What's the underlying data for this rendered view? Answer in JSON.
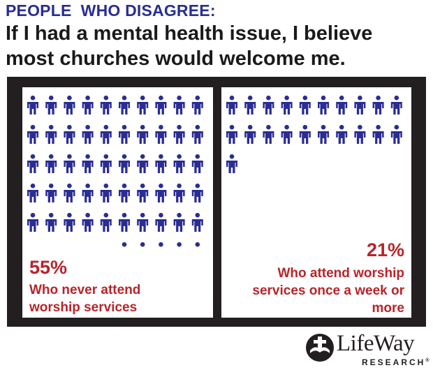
{
  "header": {
    "label": "PEOPLE  WHO DISAGREE:",
    "headline": "If I had a mental health issue, I believe most churches would welcome me."
  },
  "chart_data": {
    "type": "pictograph",
    "unit": "person icon = 1%",
    "icon_color": "#2a2d93",
    "panels": [
      {
        "percent_label": "55%",
        "value": 55,
        "description": "Who never attend worship services"
      },
      {
        "percent_label": "21%",
        "value": 21,
        "description": "Who attend worship services once a week or more"
      }
    ]
  },
  "brand": {
    "name": "LifeWay",
    "sub": "RESEARCH",
    "trademark": "®",
    "logo_icon": "cross-book-icon"
  },
  "colors": {
    "title_blue": "#2a2d93",
    "accent_red": "#b8242a",
    "frame_black": "#231f20"
  }
}
